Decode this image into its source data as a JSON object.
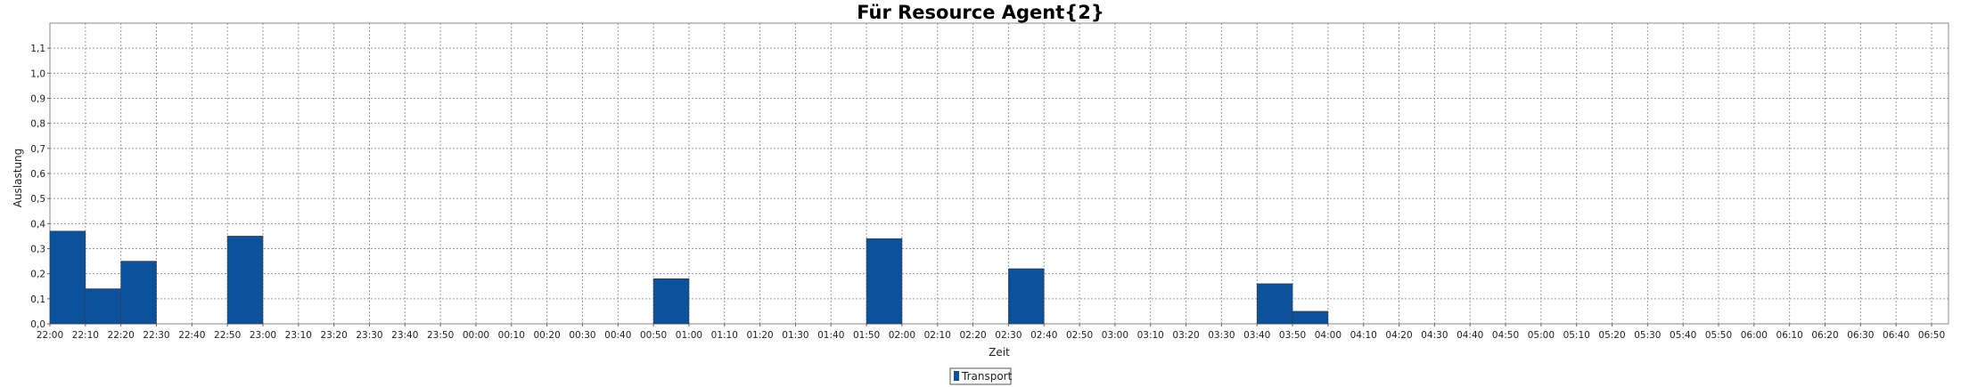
{
  "chart_data": {
    "type": "bar",
    "title": "Für Resource Agent{2}",
    "xlabel": "Zeit",
    "ylabel": "Auslastung",
    "ylim": [
      0,
      1.2
    ],
    "y_ticks": [
      "0,0",
      "0,1",
      "0,2",
      "0,3",
      "0,4",
      "0,5",
      "0,6",
      "0,7",
      "0,8",
      "0,9",
      "1,0",
      "1,1"
    ],
    "categories": [
      "22:00",
      "22:10",
      "22:20",
      "22:30",
      "22:40",
      "22:50",
      "23:00",
      "23:10",
      "23:20",
      "23:30",
      "23:40",
      "23:50",
      "00:00",
      "00:10",
      "00:20",
      "00:30",
      "00:40",
      "00:50",
      "01:00",
      "01:10",
      "01:20",
      "01:30",
      "01:40",
      "01:50",
      "02:00",
      "02:10",
      "02:20",
      "02:30",
      "02:40",
      "02:50",
      "03:00",
      "03:10",
      "03:20",
      "03:30",
      "03:40",
      "03:50",
      "04:00",
      "04:10",
      "04:20",
      "04:30",
      "04:40",
      "04:50",
      "05:00",
      "05:10",
      "05:20",
      "05:30",
      "05:40",
      "05:50",
      "06:00",
      "06:10",
      "06:20",
      "06:30",
      "06:40",
      "06:50"
    ],
    "series": [
      {
        "name": "Transport",
        "color": "#0b519c",
        "values": [
          0.37,
          0.14,
          0.25,
          0,
          0,
          0.35,
          0,
          0,
          0,
          0,
          0,
          0,
          0,
          0,
          0,
          0,
          0,
          0.18,
          0,
          0,
          0,
          0,
          0,
          0.34,
          0,
          0,
          0,
          0.22,
          0,
          0,
          0,
          0,
          0,
          0,
          0.16,
          0.05,
          0,
          0,
          0,
          0,
          0,
          0,
          0,
          0,
          0,
          0,
          0,
          0,
          0,
          0,
          0,
          0,
          0,
          0
        ]
      }
    ],
    "grid": true,
    "legend_position": "bottom-center"
  }
}
